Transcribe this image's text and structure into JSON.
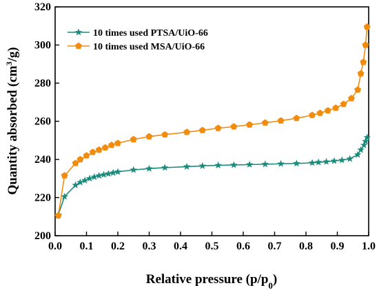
{
  "chart_data": {
    "type": "line",
    "xlabel_main": "Relative pressure (p/p",
    "xlabel_sub": "0",
    "xlabel_close": ")",
    "ylabel_main": "Quantity absorbed (cm",
    "ylabel_sup": "3",
    "ylabel_close": "/g)",
    "xlim": [
      0.0,
      1.0
    ],
    "ylim": [
      200,
      320
    ],
    "xticks": [
      "0.0",
      "0.1",
      "0.2",
      "0.3",
      "0.4",
      "0.5",
      "0.6",
      "0.7",
      "0.8",
      "0.9",
      "1.0"
    ],
    "yticks": [
      "200",
      "220",
      "240",
      "260",
      "280",
      "300",
      "320"
    ],
    "legend_position": "top-left",
    "series": [
      {
        "name": "10 times used PTSA/UiO-66",
        "color": "#1a8a7a",
        "marker": "star",
        "x": [
          0.01,
          0.03,
          0.065,
          0.08,
          0.095,
          0.11,
          0.125,
          0.14,
          0.155,
          0.17,
          0.185,
          0.2,
          0.25,
          0.3,
          0.35,
          0.42,
          0.47,
          0.52,
          0.57,
          0.62,
          0.67,
          0.72,
          0.77,
          0.82,
          0.84,
          0.865,
          0.89,
          0.915,
          0.94,
          0.965,
          0.975,
          0.985,
          0.99,
          0.995
        ],
        "y": [
          211,
          220.5,
          226.5,
          228,
          229,
          230,
          230.8,
          231.5,
          232,
          232.5,
          233,
          233.5,
          234.5,
          235.2,
          235.7,
          236.2,
          236.6,
          236.9,
          237.1,
          237.3,
          237.5,
          237.7,
          237.9,
          238.2,
          238.5,
          238.8,
          239.2,
          239.6,
          240.3,
          242.5,
          245,
          247.5,
          249.5,
          251.5
        ]
      },
      {
        "name": "10 times used MSA/UiO-66",
        "color": "#f28c0f",
        "marker": "pentagon",
        "x": [
          0.01,
          0.03,
          0.065,
          0.08,
          0.1,
          0.12,
          0.14,
          0.16,
          0.18,
          0.2,
          0.25,
          0.3,
          0.35,
          0.42,
          0.47,
          0.52,
          0.57,
          0.62,
          0.67,
          0.72,
          0.77,
          0.82,
          0.845,
          0.87,
          0.895,
          0.92,
          0.945,
          0.965,
          0.975,
          0.983,
          0.99,
          0.995
        ],
        "y": [
          210.5,
          231.5,
          238,
          240,
          242,
          243.8,
          245,
          246.2,
          247.5,
          248.5,
          250.5,
          252,
          253,
          254.3,
          255.3,
          256.4,
          257.2,
          258.2,
          259.2,
          260.3,
          261.6,
          263.2,
          264.3,
          265.6,
          267,
          269,
          272,
          276.5,
          285,
          291,
          300,
          309.5
        ]
      }
    ]
  }
}
